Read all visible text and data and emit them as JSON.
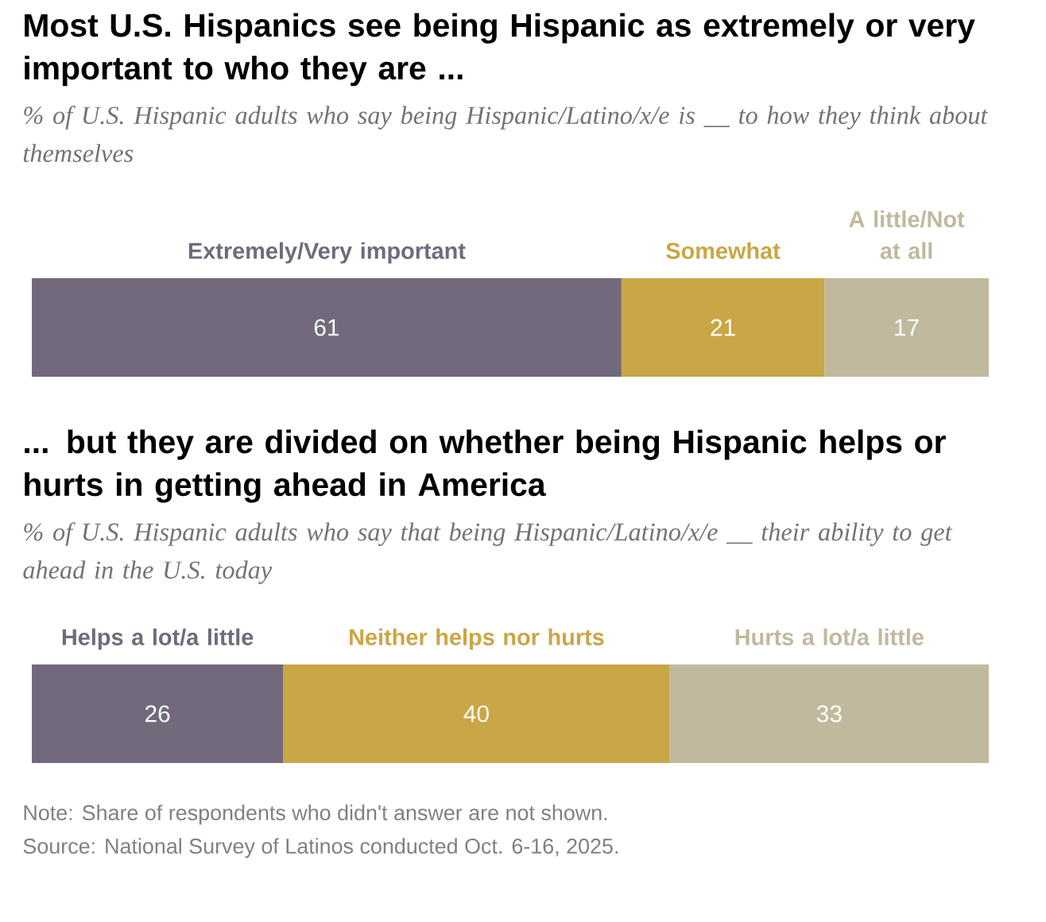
{
  "chart_data": [
    {
      "type": "bar",
      "orientation": "horizontal",
      "stacked": true,
      "data_labels": true,
      "title": "Most U.S. Hispanics see being Hispanic as extremely or very important to who they are ...",
      "subtitle": "% of U.S. Hispanic adults who say being Hispanic/Latino/x/e is __ to how they think about themselves",
      "categories": [
        null
      ],
      "series": [
        {
          "name": "Extremely/Very important",
          "color": "#726a7c",
          "values": [
            61
          ]
        },
        {
          "name": "Somewhat",
          "color": "#c9a646",
          "values": [
            21
          ]
        },
        {
          "name": "A little/Not at all",
          "color": "#c0b99d",
          "values": [
            17
          ]
        }
      ]
    },
    {
      "type": "bar",
      "orientation": "horizontal",
      "stacked": true,
      "data_labels": true,
      "title": "... but they are divided on whether being Hispanic helps or hurts in getting ahead in America",
      "subtitle": "% of U.S. Hispanic adults who say that being Hispanic/Latino/x/e __ their ability to get ahead in the U.S. today",
      "categories": [
        null
      ],
      "series": [
        {
          "name": "Helps a lot/a little",
          "color": "#726a7c",
          "values": [
            26
          ]
        },
        {
          "name": "Neither helps nor hurts",
          "color": "#c9a646",
          "values": [
            40
          ]
        },
        {
          "name": "Hurts a lot/a little",
          "color": "#c0b99d",
          "values": [
            33
          ]
        }
      ],
      "annotations": [
        "Note: Share of respondents who didn't answer are not shown.",
        "Source: National Survey of Latinos conducted Oct. 6-16, 2025."
      ]
    }
  ]
}
